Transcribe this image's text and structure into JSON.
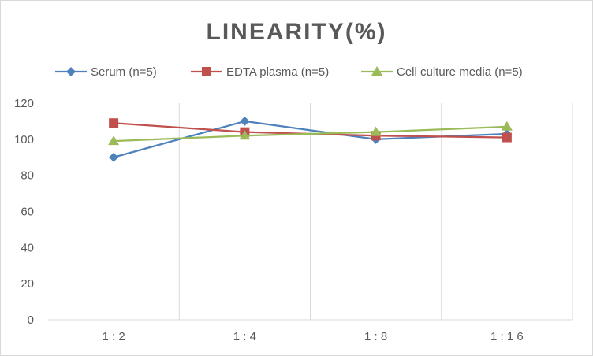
{
  "chart_data": {
    "type": "line",
    "title": "LINEARITY(%)",
    "categories": [
      "1:2",
      "1:4",
      "1:8",
      "1:16"
    ],
    "ylim": [
      0,
      120
    ],
    "yticks": [
      0,
      20,
      40,
      60,
      80,
      100,
      120
    ],
    "grid": "vertical",
    "legend_position": "top",
    "series": [
      {
        "name": "Serum (n=5)",
        "values": [
          90,
          110,
          100,
          103
        ],
        "color": "#4F81BD",
        "marker": "diamond"
      },
      {
        "name": "EDTA plasma (n=5)",
        "values": [
          109,
          104,
          102,
          101
        ],
        "color": "#C0504D",
        "marker": "square"
      },
      {
        "name": "Cell culture media (n=5)",
        "values": [
          99,
          102,
          104,
          107
        ],
        "color": "#9BBB59",
        "marker": "triangle"
      }
    ]
  }
}
